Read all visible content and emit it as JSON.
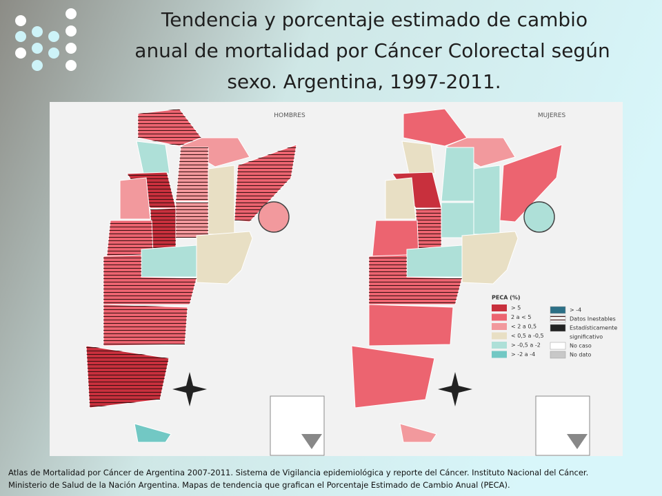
{
  "title": [
    "Tendencia y porcentaje estimado de cambio",
    "anual de mortalidad por Cáncer Colorectal según",
    "sexo. Argentina, 1997-2011."
  ],
  "maps": [
    {
      "label": "HOMBRES"
    },
    {
      "label": "MUJERES"
    }
  ],
  "legend": {
    "title": "PECA (%)",
    "items": [
      "> 5",
      "2 a < 5",
      "< 2 a 0,5",
      "< 0,5 a -0,5",
      "> -0,5 a -2",
      "> -2 a -4"
    ],
    "extra": [
      "> -4",
      "Datos Inestables",
      "Estadísticamente",
      "significativo",
      "No caso",
      "No dato"
    ]
  },
  "caption": [
    "Atlas de Mortalidad por Cáncer de Argentina 2007-2011. Sistema de Vigilancia epidemiológica y reporte del Cáncer. Instituto Nacional del Cáncer.",
    "Ministerio de Salud de la Nación Argentina. Mapas de tendencia que grafican el Porcentaje Estimado de Cambio Anual (PECA)."
  ]
}
